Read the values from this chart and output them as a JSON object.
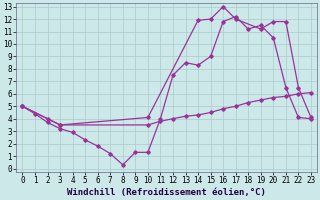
{
  "xlabel": "Windchill (Refroidissement éolien,°C)",
  "xlim": [
    -0.5,
    23.5
  ],
  "ylim": [
    -0.3,
    13.3
  ],
  "xticks": [
    0,
    1,
    2,
    3,
    4,
    5,
    6,
    7,
    8,
    9,
    10,
    11,
    12,
    13,
    14,
    15,
    16,
    17,
    18,
    19,
    20,
    21,
    22,
    23
  ],
  "yticks": [
    0,
    1,
    2,
    3,
    4,
    5,
    6,
    7,
    8,
    9,
    10,
    11,
    12,
    13
  ],
  "background_color": "#cde8e8",
  "grid_color": "#aacccc",
  "line_color": "#993399",
  "line1_x": [
    0,
    1,
    2,
    3,
    4,
    5,
    6,
    7,
    8,
    9,
    10,
    11,
    12,
    13,
    14,
    15,
    16,
    17,
    18,
    19,
    20,
    21,
    22,
    23
  ],
  "line1_y": [
    5.0,
    4.4,
    3.7,
    3.2,
    2.9,
    2.3,
    1.8,
    1.2,
    0.3,
    1.3,
    1.3,
    4.0,
    7.5,
    8.5,
    8.3,
    9.0,
    11.8,
    12.2,
    11.2,
    11.5,
    10.5,
    6.5,
    4.1,
    4.0
  ],
  "line2_x": [
    0,
    3,
    10,
    14,
    15,
    16,
    17,
    19,
    20,
    21,
    22,
    23
  ],
  "line2_y": [
    5.0,
    3.5,
    4.1,
    11.9,
    12.0,
    13.0,
    12.0,
    11.2,
    11.8,
    11.8,
    6.5,
    4.1
  ],
  "line3_x": [
    0,
    2,
    3,
    10,
    11,
    12,
    13,
    14,
    15,
    16,
    17,
    18,
    19,
    20,
    21,
    22,
    23
  ],
  "line3_y": [
    5.0,
    4.0,
    3.5,
    3.5,
    3.8,
    4.0,
    4.2,
    4.3,
    4.5,
    4.8,
    5.0,
    5.3,
    5.5,
    5.7,
    5.8,
    6.0,
    6.1
  ],
  "fontsize_tick": 5.5,
  "fontsize_label": 6.5
}
